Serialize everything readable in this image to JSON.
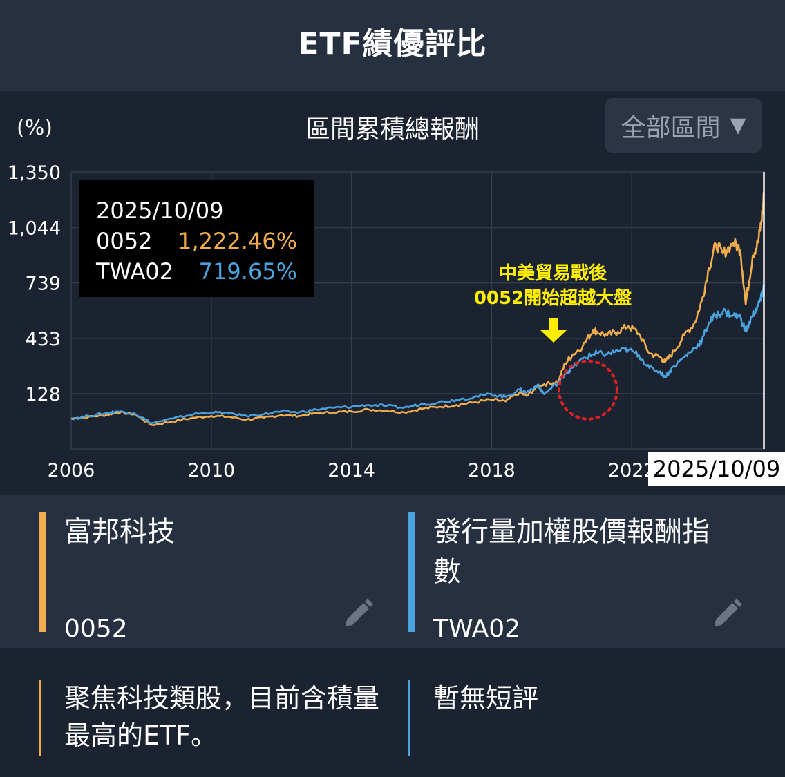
{
  "header": {
    "title": "ETF績優評比"
  },
  "chart": {
    "unit_label": "(%)",
    "title": "區間累積總報酬",
    "range_selector": {
      "label": "全部區間",
      "icon": "triangle-down-icon"
    },
    "tooltip": {
      "date": "2025/10/09",
      "rows": [
        {
          "code": "0052",
          "value": "1,222.46%"
        },
        {
          "code": "TWA02",
          "value": "719.65%"
        }
      ]
    },
    "annotation": {
      "line1": "中美貿易戰後",
      "line2": "0052開始超越大盤"
    },
    "cursor_date": "2025/10/09"
  },
  "chart_data": {
    "type": "line",
    "title": "區間累積總報酬",
    "ylabel": "(%)",
    "xlabel": "",
    "x_ticks": [
      "2006",
      "2010",
      "2014",
      "2018",
      "2022"
    ],
    "y_ticks": [
      128,
      433,
      739,
      1044,
      1350
    ],
    "y_tick_labels": [
      "128",
      "433",
      "739",
      "1,044",
      "1,350"
    ],
    "xlim": [
      2006.0,
      2025.8
    ],
    "ylim": [
      -177,
      1350
    ],
    "grid": true,
    "series": [
      {
        "name": "0052",
        "color": "#f0ad4e",
        "x": [
          2006.0,
          2006.5,
          2007.0,
          2007.3,
          2007.8,
          2008.3,
          2008.9,
          2009.5,
          2010.0,
          2010.5,
          2011.0,
          2011.5,
          2012.0,
          2012.5,
          2013.0,
          2013.5,
          2014.0,
          2014.5,
          2015.0,
          2015.5,
          2016.0,
          2016.5,
          2017.0,
          2017.5,
          2018.0,
          2018.4,
          2018.8,
          2019.0,
          2019.3,
          2019.5,
          2019.9,
          2020.1,
          2020.3,
          2020.6,
          2020.9,
          2021.0,
          2021.3,
          2021.6,
          2021.9,
          2022.2,
          2022.5,
          2022.8,
          2022.95,
          2023.2,
          2023.5,
          2023.8,
          2024.0,
          2024.2,
          2024.4,
          2024.6,
          2024.9,
          2025.1,
          2025.25,
          2025.45,
          2025.6,
          2025.7,
          2025.77
        ],
        "y": [
          -10,
          0,
          10,
          25,
          15,
          -45,
          -25,
          -5,
          5,
          0,
          -15,
          -5,
          10,
          5,
          20,
          25,
          30,
          40,
          35,
          25,
          45,
          55,
          65,
          80,
          95,
          85,
          135,
          115,
          165,
          180,
          195,
          295,
          340,
          390,
          480,
          470,
          450,
          470,
          500,
          460,
          350,
          330,
          300,
          360,
          450,
          520,
          640,
          820,
          950,
          900,
          960,
          920,
          620,
          890,
          960,
          1080,
          1222
        ]
      },
      {
        "name": "TWA02",
        "color": "#4aa3df",
        "x": [
          2006.0,
          2006.5,
          2007.0,
          2007.3,
          2007.8,
          2008.3,
          2008.9,
          2009.5,
          2010.0,
          2010.5,
          2011.0,
          2011.5,
          2012.0,
          2012.5,
          2013.0,
          2013.5,
          2014.0,
          2014.5,
          2015.0,
          2015.5,
          2016.0,
          2016.5,
          2017.0,
          2017.5,
          2018.0,
          2018.4,
          2018.8,
          2019.0,
          2019.3,
          2019.5,
          2019.9,
          2020.1,
          2020.3,
          2020.6,
          2020.9,
          2021.0,
          2021.3,
          2021.6,
          2021.9,
          2022.2,
          2022.5,
          2022.8,
          2022.95,
          2023.2,
          2023.5,
          2023.8,
          2024.0,
          2024.2,
          2024.4,
          2024.6,
          2024.9,
          2025.1,
          2025.25,
          2025.45,
          2025.6,
          2025.7,
          2025.77
        ],
        "y": [
          -10,
          5,
          20,
          30,
          20,
          -35,
          -10,
          15,
          25,
          20,
          5,
          15,
          30,
          25,
          40,
          50,
          55,
          65,
          60,
          50,
          70,
          80,
          95,
          110,
          125,
          110,
          150,
          135,
          175,
          125,
          190,
          240,
          270,
          320,
          345,
          350,
          345,
          365,
          370,
          340,
          270,
          250,
          220,
          280,
          330,
          380,
          420,
          520,
          560,
          580,
          560,
          550,
          470,
          560,
          610,
          660,
          720
        ]
      }
    ]
  },
  "cards": [
    {
      "name": "富邦科技",
      "code": "0052",
      "color": "#f0ad4e",
      "edit_icon": "pencil-icon"
    },
    {
      "name": "發行量加權股價報酬指數",
      "code": "TWA02",
      "color": "#4aa3df",
      "edit_icon": "pencil-icon"
    }
  ],
  "notes": [
    {
      "text": "聚焦科技類股，目前含積量最高的ETF。",
      "color": "#f0ad4e"
    },
    {
      "text": "暫無短評",
      "color": "#4aa3df"
    }
  ]
}
